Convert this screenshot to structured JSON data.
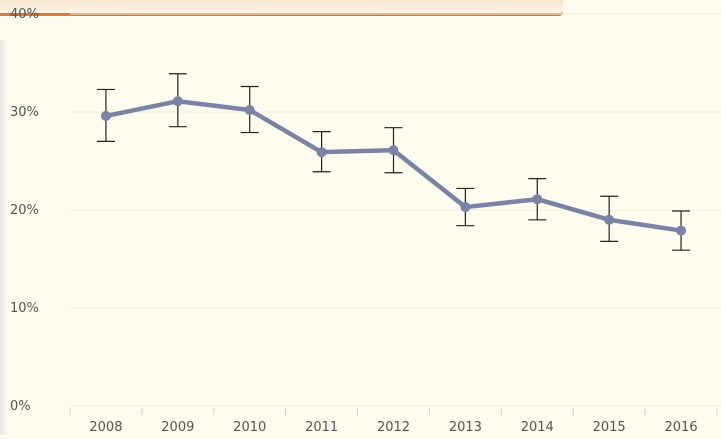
{
  "chart_data": {
    "type": "line",
    "title": "",
    "xlabel": "",
    "ylabel": "",
    "categories": [
      "2008",
      "2009",
      "2010",
      "2011",
      "2012",
      "2013",
      "2014",
      "2015",
      "2016"
    ],
    "series": [
      {
        "values": [
          29.6,
          31.1,
          30.2,
          25.9,
          26.1,
          20.3,
          21.1,
          19.0,
          17.9
        ],
        "error_low": [
          27.0,
          28.5,
          27.9,
          23.9,
          23.8,
          18.4,
          19.0,
          16.8,
          15.9
        ],
        "error_high": [
          32.3,
          33.9,
          32.6,
          28.0,
          28.4,
          22.2,
          23.2,
          21.4,
          19.9
        ],
        "color": "#7b83a4"
      }
    ],
    "ylim": [
      0,
      40
    ],
    "y_ticks": [
      0,
      10,
      20,
      30,
      40
    ],
    "y_tick_labels": [
      "0%",
      "10%",
      "20%",
      "30%",
      "40%"
    ],
    "grid": true,
    "legend": "none",
    "colors": {
      "background": "#fdfcee",
      "gridline": "#efeee0",
      "error_bar": "#222222",
      "accent_strip": "#d97a38"
    }
  }
}
